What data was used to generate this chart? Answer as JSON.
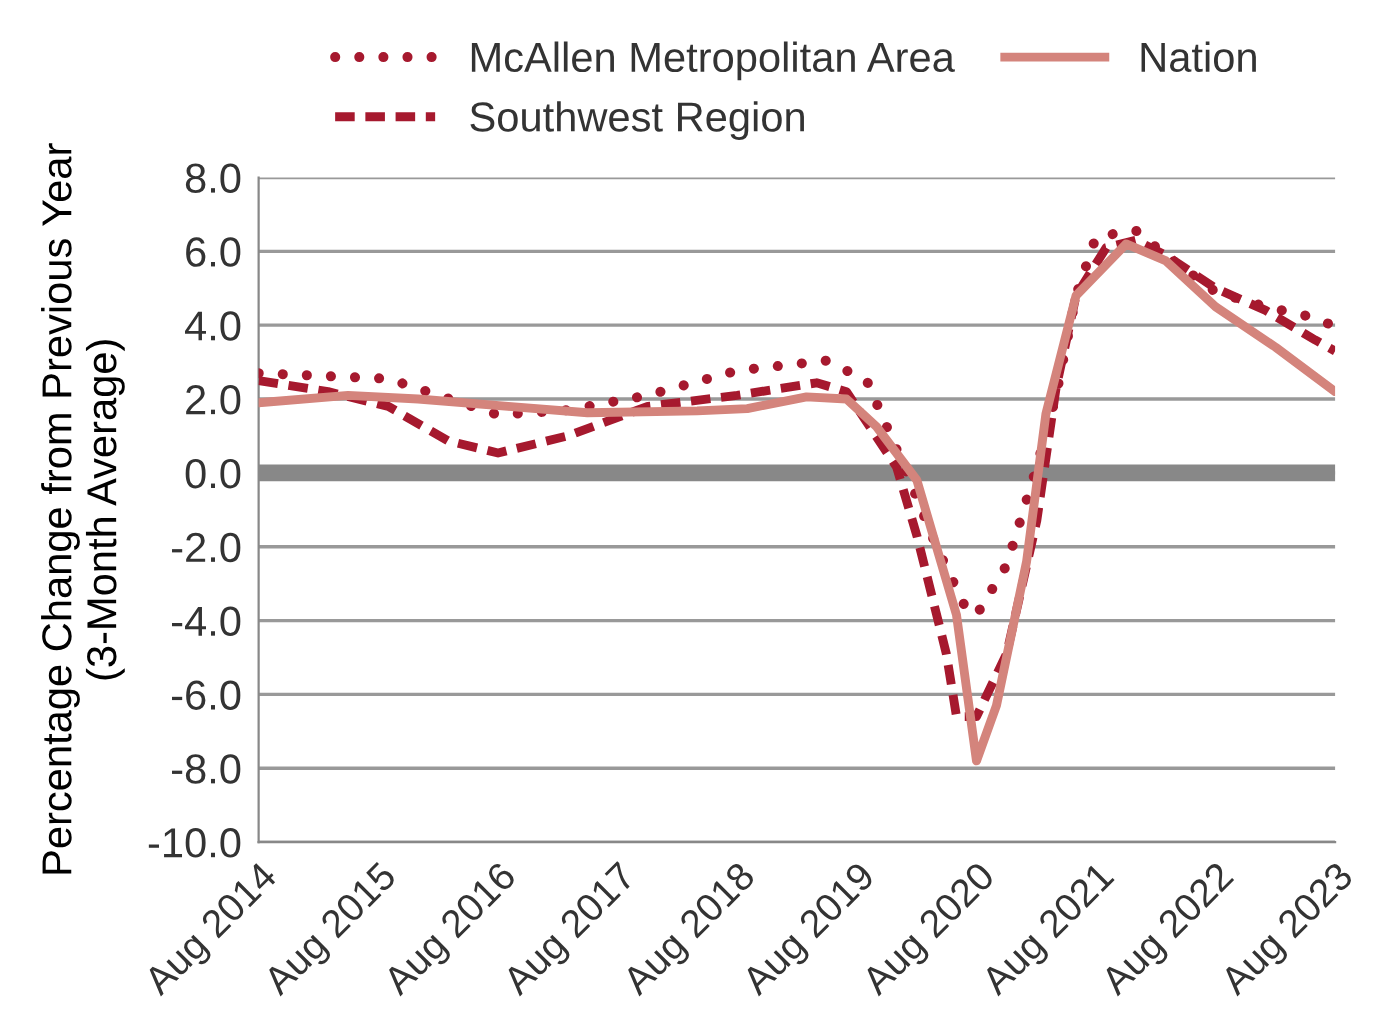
{
  "chart_data": {
    "type": "line",
    "ylabel": "Percentage Change from Previous Year\n(3-Month Average)",
    "xlim": [
      "2014-08",
      "2023-08"
    ],
    "xticks": [
      {
        "value": "2014-08",
        "label": "Aug 2014"
      },
      {
        "value": "2015-08",
        "label": "Aug 2015"
      },
      {
        "value": "2016-08",
        "label": "Aug 2016"
      },
      {
        "value": "2017-08",
        "label": "Aug 2017"
      },
      {
        "value": "2018-08",
        "label": "Aug 2018"
      },
      {
        "value": "2019-08",
        "label": "Aug 2019"
      },
      {
        "value": "2020-08",
        "label": "Aug 2020"
      },
      {
        "value": "2021-08",
        "label": "Aug 2021"
      },
      {
        "value": "2022-08",
        "label": "Aug 2022"
      },
      {
        "value": "2023-08",
        "label": "Aug 2023"
      }
    ],
    "ylim": [
      -10,
      8
    ],
    "yticks": [
      {
        "value": -10,
        "label": "-10.0"
      },
      {
        "value": -8,
        "label": "-8.0"
      },
      {
        "value": -6,
        "label": "-6.0"
      },
      {
        "value": -4,
        "label": "-4.0"
      },
      {
        "value": -2,
        "label": "-2.0"
      },
      {
        "value": 0,
        "label": "0.0"
      },
      {
        "value": 2,
        "label": "2.0"
      },
      {
        "value": 4,
        "label": "4.0"
      },
      {
        "value": 6,
        "label": "6.0"
      },
      {
        "value": 8,
        "label": "8.0"
      }
    ],
    "grid": "y",
    "legend": "top",
    "marker": "none",
    "ref_lines": [
      {
        "axis": "y",
        "value": 0,
        "color": "#888888"
      }
    ],
    "series": [
      {
        "name": "McAllen Metropolitan Area",
        "color": "#a6192e",
        "line_style": "dotted",
        "x": [
          "2014-08",
          "2015-09",
          "2016-08",
          "2017-03",
          "2017-11",
          "2018-08",
          "2019-05",
          "2019-09",
          "2020-01",
          "2020-04",
          "2020-07",
          "2020-08",
          "2020-11",
          "2021-02",
          "2021-04",
          "2021-06",
          "2021-08",
          "2021-12",
          "2022-03",
          "2022-08",
          "2023-01",
          "2023-06",
          "2023-08"
        ],
        "values": [
          2.7,
          2.55,
          1.57,
          1.7,
          2.1,
          2.77,
          3.04,
          2.5,
          0.0,
          -2.0,
          -3.7,
          -3.85,
          -2.5,
          0.16,
          2.1,
          4.8,
          6.4,
          6.56,
          5.9,
          4.9,
          4.5,
          4.2,
          3.96
        ]
      },
      {
        "name": "Southwest Region",
        "color": "#a6192e",
        "line_style": "dashed",
        "x": [
          "2014-08",
          "2015-03",
          "2015-09",
          "2016-03",
          "2016-08",
          "2017-03",
          "2017-11",
          "2018-08",
          "2019-04",
          "2019-07",
          "2019-12",
          "2020-02",
          "2020-05",
          "2020-06",
          "2020-08",
          "2020-11",
          "2021-02",
          "2021-04",
          "2021-06",
          "2021-09",
          "2021-12",
          "2022-03",
          "2022-08",
          "2023-01",
          "2023-06",
          "2023-08"
        ],
        "values": [
          2.5,
          2.2,
          1.8,
          0.87,
          0.54,
          1.0,
          1.8,
          2.1,
          2.44,
          2.2,
          0.16,
          -1.7,
          -4.9,
          -6.6,
          -6.6,
          -4.9,
          -1.3,
          2.3,
          4.8,
          6.1,
          6.3,
          5.9,
          5.0,
          4.4,
          3.6,
          3.3
        ]
      },
      {
        "name": "Nation",
        "color": "#d4847c",
        "line_style": "solid",
        "x": [
          "2014-08",
          "2015-05",
          "2015-12",
          "2016-09",
          "2017-05",
          "2018-04",
          "2018-09",
          "2019-03",
          "2019-07",
          "2019-10",
          "2020-02",
          "2020-06",
          "2020-08",
          "2020-10",
          "2021-01",
          "2021-03",
          "2021-06",
          "2021-11",
          "2022-03",
          "2022-08",
          "2023-02",
          "2023-08"
        ],
        "values": [
          1.9,
          2.1,
          2.0,
          1.8,
          1.63,
          1.68,
          1.74,
          2.06,
          2.0,
          1.25,
          -0.2,
          -3.85,
          -7.8,
          -6.3,
          -2.4,
          1.6,
          4.8,
          6.2,
          5.75,
          4.5,
          3.4,
          2.2
        ]
      }
    ]
  }
}
